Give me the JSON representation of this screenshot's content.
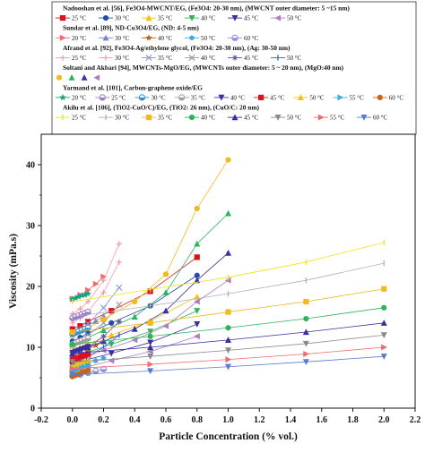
{
  "chart_data": {
    "type": "scatter",
    "xlabel": "Particle Concentration (% vol.)",
    "ylabel": "Viscosity (mPa.s)",
    "xlim": [
      -0.2,
      2.2
    ],
    "ylim": [
      0,
      45
    ],
    "xticks": [
      "-0.2",
      "0.0",
      "0.2",
      "0.4",
      "0.6",
      "0.8",
      "1.0",
      "1.2",
      "1.4",
      "1.6",
      "1.8",
      "2.0",
      "2.2"
    ],
    "yticks": [
      "0",
      "10",
      "20",
      "30",
      "40"
    ],
    "legend_position": "top",
    "groups": [
      {
        "heading": "Nadooshan et al. [56], Fe3O4-MWCNT/EG, (Fe3O4: 20-30 nm), (MWCNT outer diameter: 5 ~15 nm)",
        "series": [
          {
            "name": "25 °C",
            "color": "#e0101a",
            "marker": "square",
            "x": [
              0,
              0.05,
              0.1,
              0.25,
              0.5,
              0.8
            ],
            "y": [
              13.0,
              13.5,
              14.2,
              16.0,
              19.2,
              24.8
            ]
          },
          {
            "name": "30 °C",
            "color": "#1f4fa8",
            "marker": "circle",
            "x": [
              0,
              0.05,
              0.1,
              0.25,
              0.5,
              0.8
            ],
            "y": [
              11.0,
              11.6,
              12.3,
              14.0,
              16.8,
              21.8
            ]
          },
          {
            "name": "35 °C",
            "color": "#f2c20c",
            "marker": "triangle-up",
            "x": [
              0,
              0.05,
              0.1,
              0.25,
              0.5,
              0.8
            ],
            "y": [
              9.5,
              10.0,
              10.6,
              12.0,
              14.3,
              18.3
            ]
          },
          {
            "name": "40 °C",
            "color": "#2db35a",
            "marker": "triangle-down",
            "x": [
              0,
              0.05,
              0.1,
              0.25,
              0.5,
              0.8
            ],
            "y": [
              8.2,
              8.7,
              9.2,
              10.5,
              12.6,
              16.0
            ]
          },
          {
            "name": "45 °C",
            "color": "#3a2fa0",
            "marker": "triangle-down",
            "x": [
              0,
              0.05,
              0.1,
              0.25,
              0.5,
              0.8
            ],
            "y": [
              7.0,
              7.5,
              8.0,
              9.0,
              10.8,
              13.8
            ]
          },
          {
            "name": "50 °C",
            "color": "#b07ec0",
            "marker": "triangle-left",
            "x": [
              0,
              0.05,
              0.1,
              0.25,
              0.5,
              0.8
            ],
            "y": [
              6.0,
              6.4,
              6.8,
              7.8,
              9.3,
              11.8
            ]
          }
        ]
      },
      {
        "heading": "Sundar et al. [89], ND-Co3O4/EG, (ND: 4-5 nm)",
        "series": [
          {
            "name": "20 °C",
            "color": "#f26a6a",
            "marker": "triangle-right",
            "x": [
              0,
              0.05,
              0.1,
              0.15,
              0.2
            ],
            "y": [
              18.0,
              18.6,
              19.4,
              20.4,
              21.6
            ]
          },
          {
            "name": "30 °C",
            "color": "#7a86c8",
            "marker": "triangle-up",
            "x": [
              0,
              0.05,
              0.1,
              0.15,
              0.2
            ],
            "y": [
              12.5,
              13.0,
              13.6,
              14.3,
              15.1
            ]
          },
          {
            "name": "40 °C",
            "color": "#b6641b",
            "marker": "star",
            "x": [
              0,
              0.05,
              0.1,
              0.15,
              0.2
            ],
            "y": [
              9.0,
              9.4,
              9.8,
              10.3,
              10.9
            ]
          },
          {
            "name": "50 °C",
            "color": "#3fa9e0",
            "marker": "pentagon",
            "x": [
              0,
              0.05,
              0.1,
              0.15,
              0.2
            ],
            "y": [
              6.8,
              7.1,
              7.4,
              7.8,
              8.2
            ]
          },
          {
            "name": "60 °C",
            "color": "#8a8fd8",
            "marker": "circle-half",
            "x": [
              0,
              0.05,
              0.1,
              0.15,
              0.2
            ],
            "y": [
              5.3,
              5.5,
              5.8,
              6.1,
              6.4
            ]
          }
        ]
      },
      {
        "heading": "Afrand et al. [92], Fe3O4-Ag/ethylene glycol, (Fe3O4: 20-30 nm), (Ag: 30-50 nm)",
        "series": [
          {
            "name": "25 °C",
            "color": "#f29bb0",
            "marker": "plus",
            "x": [
              0,
              0.05,
              0.1,
              0.2,
              0.3
            ],
            "y": [
              15.5,
              16.3,
              17.5,
              21.0,
              27.0
            ]
          },
          {
            "name": "30 °C",
            "color": "#f29bb0",
            "marker": "plus",
            "x": [
              0,
              0.05,
              0.1,
              0.2,
              0.3
            ],
            "y": [
              14.0,
              14.8,
              15.9,
              19.0,
              24.0
            ]
          },
          {
            "name": "35 °C",
            "color": "#8a9ad8",
            "marker": "x",
            "x": [
              0,
              0.05,
              0.1,
              0.2,
              0.3
            ],
            "y": [
              12.0,
              12.8,
              13.9,
              16.5,
              19.8
            ]
          },
          {
            "name": "40 °C",
            "color": "#9a9a9a",
            "marker": "x",
            "x": [
              0,
              0.05,
              0.1,
              0.2,
              0.3
            ],
            "y": [
              10.2,
              11.0,
              12.0,
              14.0,
              17.0
            ]
          },
          {
            "name": "45 °C",
            "color": "#6e4db0",
            "marker": "asterisk",
            "x": [
              0,
              0.05,
              0.1,
              0.2,
              0.3
            ],
            "y": [
              8.5,
              9.2,
              10.0,
              11.8,
              14.2
            ]
          },
          {
            "name": "50 °C",
            "color": "#2a6ad0",
            "marker": "bar",
            "x": [
              0,
              0.05,
              0.1,
              0.2,
              0.3
            ],
            "y": [
              7.2,
              7.8,
              8.5,
              10.0,
              12.0
            ]
          }
        ]
      },
      {
        "heading": "Soltani and Akbari [94], MWCNTs-MgO/EG, (MWCNTs outer diameter: 5 ~ 20 nm), (MgO:40 nm)",
        "series": [
          {
            "name": "",
            "color": "#f2b81c",
            "marker": "circle",
            "x": [
              0,
              0.1,
              0.2,
              0.4,
              0.6,
              0.8,
              1.0
            ],
            "y": [
              12.0,
              13.2,
              14.6,
              17.5,
              22.0,
              32.8,
              40.8
            ]
          },
          {
            "name": "",
            "color": "#2db35a",
            "marker": "triangle-up",
            "x": [
              0,
              0.1,
              0.2,
              0.4,
              0.6,
              0.8,
              1.0
            ],
            "y": [
              10.5,
              11.6,
              12.8,
              15.0,
              19.0,
              27.0,
              32.0
            ]
          },
          {
            "name": "",
            "color": "#3a2fa0",
            "marker": "triangle-up",
            "x": [
              0,
              0.1,
              0.2,
              0.4,
              0.6,
              0.8,
              1.0
            ],
            "y": [
              9.0,
              10.0,
              11.0,
              13.0,
              16.0,
              21.0,
              25.5
            ]
          },
          {
            "name": "",
            "color": "#b07ec0",
            "marker": "triangle-left",
            "x": [
              0,
              0.1,
              0.2,
              0.4,
              0.6,
              0.8,
              1.0
            ],
            "y": [
              7.8,
              8.5,
              9.5,
              11.2,
              13.5,
              17.5,
              21.0
            ]
          }
        ]
      },
      {
        "heading": "Yarmand et al. [101], Carbon-graphene oxide/EG",
        "series": [
          {
            "name": "20 °C",
            "color": "#17a084",
            "marker": "star",
            "x": [
              0,
              0.02,
              0.04,
              0.06,
              0.08,
              0.1
            ],
            "y": [
              17.9,
              18.1,
              18.3,
              18.5,
              18.6,
              18.8
            ]
          },
          {
            "name": "25 °C",
            "color": "#9a7cc8",
            "marker": "circle-half",
            "x": [
              0,
              0.02,
              0.04,
              0.06,
              0.08,
              0.1
            ],
            "y": [
              14.8,
              15.0,
              15.2,
              15.4,
              15.6,
              15.8
            ]
          },
          {
            "name": "30 °C",
            "color": "#3a8fd0",
            "marker": "circle-half",
            "x": [
              0,
              0.02,
              0.04,
              0.06,
              0.08,
              0.1
            ],
            "y": [
              12.2,
              12.4,
              12.6,
              12.8,
              13.0,
              13.2
            ]
          },
          {
            "name": "35 °C",
            "color": "#a0a0a0",
            "marker": "circle-half",
            "x": [
              0,
              0.02,
              0.04,
              0.06,
              0.08,
              0.1
            ],
            "y": [
              10.5,
              10.7,
              10.9,
              11.1,
              11.3,
              11.5
            ]
          },
          {
            "name": "40 °C",
            "color": "#3a2fa0",
            "marker": "triangle-down",
            "x": [
              0,
              0.02,
              0.04,
              0.06,
              0.08,
              0.1
            ],
            "y": [
              9.1,
              9.3,
              9.5,
              9.7,
              9.9,
              10.1
            ]
          },
          {
            "name": "45 °C",
            "color": "#e0101a",
            "marker": "square",
            "x": [
              0,
              0.02,
              0.04,
              0.06,
              0.08,
              0.1
            ],
            "y": [
              7.9,
              8.1,
              8.3,
              8.5,
              8.7,
              8.9
            ]
          },
          {
            "name": "50 °C",
            "color": "#f2c20c",
            "marker": "triangle-up",
            "x": [
              0,
              0.02,
              0.04,
              0.06,
              0.08,
              0.1
            ],
            "y": [
              6.9,
              7.1,
              7.3,
              7.5,
              7.7,
              7.9
            ]
          },
          {
            "name": "55 °C",
            "color": "#3fa9e0",
            "marker": "triangle-right",
            "x": [
              0,
              0.02,
              0.04,
              0.06,
              0.08,
              0.1
            ],
            "y": [
              6.0,
              6.2,
              6.4,
              6.6,
              6.8,
              7.0
            ]
          },
          {
            "name": "60 °C",
            "color": "#c86414",
            "marker": "circle",
            "x": [
              0,
              0.02,
              0.04,
              0.06,
              0.08,
              0.1
            ],
            "y": [
              5.2,
              5.4,
              5.6,
              5.8,
              6.0,
              6.2
            ]
          }
        ]
      },
      {
        "heading": "Akilu et al. [106], (TiO2-CuO/C)/EG, (TiO2: 26 nm), (CuO/C: 20 nm)",
        "series": [
          {
            "name": "25 °C",
            "color": "#f2e21c",
            "marker": "bar",
            "x": [
              0,
              0.5,
              1.0,
              1.5,
              2.0
            ],
            "y": [
              17.5,
              19.5,
              21.5,
              24.0,
              27.2
            ]
          },
          {
            "name": "30 °C",
            "color": "#b0b0b0",
            "marker": "bar",
            "x": [
              0,
              0.5,
              1.0,
              1.5,
              2.0
            ],
            "y": [
              15.0,
              16.8,
              18.8,
              21.0,
              23.8
            ]
          },
          {
            "name": "35 °C",
            "color": "#f2b81c",
            "marker": "square",
            "x": [
              0,
              0.5,
              1.0,
              1.5,
              2.0
            ],
            "y": [
              12.5,
              14.0,
              15.8,
              17.5,
              19.6
            ]
          },
          {
            "name": "40 °C",
            "color": "#2db35a",
            "marker": "circle",
            "x": [
              0,
              0.5,
              1.0,
              1.5,
              2.0
            ],
            "y": [
              10.5,
              11.8,
              13.2,
              14.7,
              16.5
            ]
          },
          {
            "name": "45 °C",
            "color": "#3a2fa0",
            "marker": "triangle-up",
            "x": [
              0,
              0.5,
              1.0,
              1.5,
              2.0
            ],
            "y": [
              9.0,
              10.0,
              11.2,
              12.5,
              14.0
            ]
          },
          {
            "name": "50 °C",
            "color": "#8a8a8a",
            "marker": "triangle-down",
            "x": [
              0,
              0.5,
              1.0,
              1.5,
              2.0
            ],
            "y": [
              7.6,
              8.5,
              9.5,
              10.6,
              12.0
            ]
          },
          {
            "name": "55 °C",
            "color": "#f26a6a",
            "marker": "triangle-right",
            "x": [
              0,
              0.5,
              1.0,
              1.5,
              2.0
            ],
            "y": [
              6.5,
              7.2,
              8.0,
              8.9,
              10.0
            ]
          },
          {
            "name": "60 °C",
            "color": "#5a7ad0",
            "marker": "triangle-down",
            "x": [
              0,
              0.5,
              1.0,
              1.5,
              2.0
            ],
            "y": [
              5.5,
              6.1,
              6.8,
              7.6,
              8.5
            ]
          }
        ]
      }
    ]
  }
}
